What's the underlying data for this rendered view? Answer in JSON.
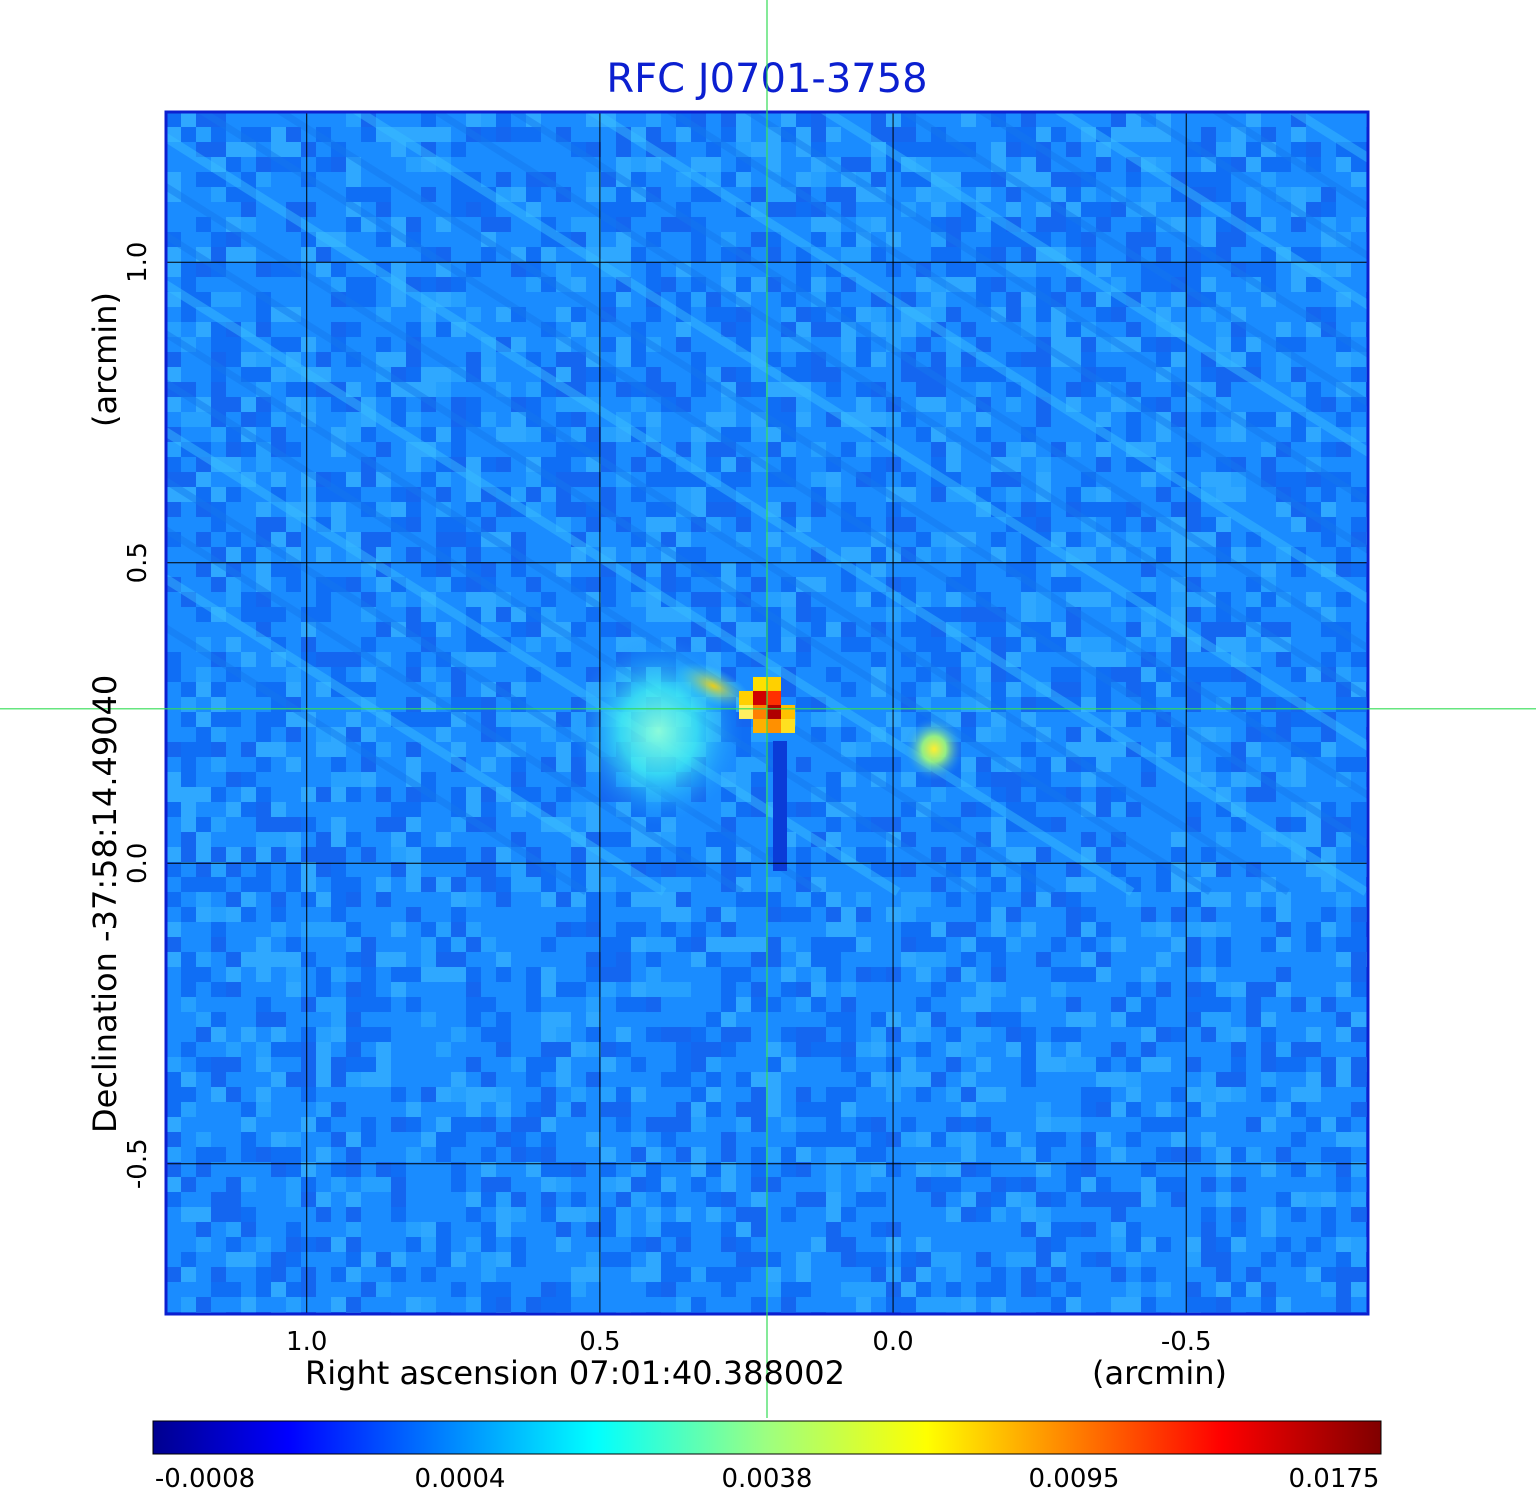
{
  "chart_data": {
    "type": "heatmap",
    "title": "RFC J0701-3758",
    "xlabel": "Right ascension  07:01:40.388002",
    "xunit": "(arcmin)",
    "ylabel": "Declination  -37:58:14.49040",
    "yunit": "(arcmin)",
    "xlim": [
      1.24,
      -0.81
    ],
    "ylim": [
      -0.75,
      1.25
    ],
    "x_ticks": [
      {
        "value": 1.0,
        "label": "1.0"
      },
      {
        "value": 0.5,
        "label": "0.5"
      },
      {
        "value": 0.0,
        "label": "0.0"
      },
      {
        "value": -0.5,
        "label": "-0.5"
      }
    ],
    "y_ticks": [
      {
        "value": 1.0,
        "label": "1.0"
      },
      {
        "value": 0.5,
        "label": "0.5"
      },
      {
        "value": 0.0,
        "label": "0.0"
      },
      {
        "value": -0.5,
        "label": "-0.5"
      }
    ],
    "grid": true,
    "crosshair": {
      "x": 0.215,
      "y": 0.257
    },
    "colorbar": {
      "ticks": [
        "-0.0008",
        "0.0004",
        "0.0038",
        "0.0095",
        "0.0175"
      ],
      "colormap": "jet"
    },
    "components": [
      {
        "x": 0.215,
        "y": 0.27,
        "value": 0.0175
      },
      {
        "x": 0.4,
        "y": 0.22,
        "value": 0.002
      },
      {
        "x": -0.07,
        "y": 0.19,
        "value": 0.005
      }
    ]
  },
  "colors": {
    "frame": "#0b1fd0",
    "crosshair": "#33dd55",
    "grid": "#000000"
  }
}
